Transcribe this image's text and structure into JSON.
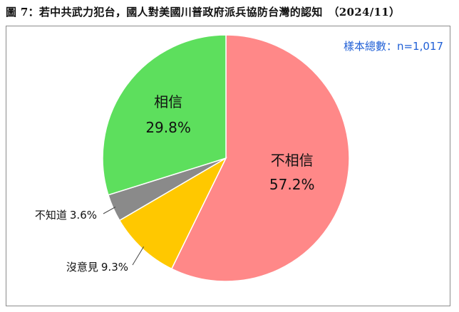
{
  "title": "圖 7：若中共武力犯台，國人對美國川普政府派兵協防台灣的認知　（2024/11）",
  "sample_note": "樣本總數：n=1,017",
  "chart_data": {
    "type": "pie",
    "title": "圖 7：若中共武力犯台，國人對美國川普政府派兵協防台灣的認知　（2024/11）",
    "annotation": "樣本總數：n=1,017",
    "slices": [
      {
        "label": "不相信",
        "value": 57.2,
        "value_text": "57.2%",
        "color": "#ff8888"
      },
      {
        "label": "沒意見",
        "value": 9.3,
        "value_text": "9.3%",
        "color": "#ffc800"
      },
      {
        "label": "不知道",
        "value": 3.6,
        "value_text": "3.6%",
        "color": "#8a8a8a"
      },
      {
        "label": "相信",
        "value": 29.8,
        "value_text": "29.8%",
        "color": "#5ddf5d"
      }
    ],
    "start": "12 o'clock",
    "direction": "clockwise",
    "label_position": "inside for large slices, outside with leader lines for small slices",
    "legend": "none"
  }
}
